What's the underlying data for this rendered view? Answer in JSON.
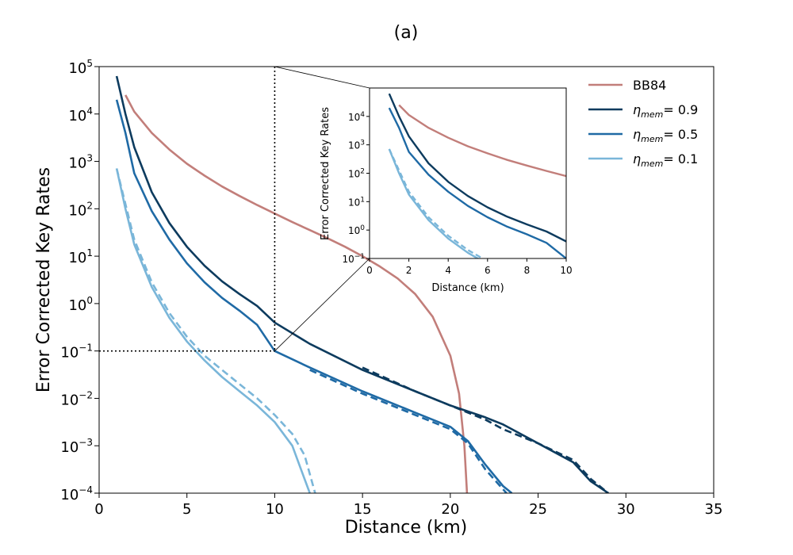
{
  "chart_data": {
    "type": "line",
    "title": "(a)",
    "xlabel": "Distance (km)",
    "ylabel": "Error Corrected Key Rates",
    "yscale": "log",
    "xlim": [
      0,
      35
    ],
    "ylim_exp": [
      -4,
      5
    ],
    "x_ticks": [
      0,
      5,
      10,
      15,
      20,
      25,
      30,
      35
    ],
    "y_tick_exps": [
      -4,
      -3,
      -2,
      -1,
      0,
      1,
      2,
      3,
      4,
      5
    ],
    "y_tick_base": "10",
    "legend_position": "upper-right",
    "legend": [
      {
        "series": "bb84",
        "label": "BB84"
      },
      {
        "series": "eta09",
        "symbol": "η",
        "sub": "mem",
        "text": "= 0.9"
      },
      {
        "series": "eta05",
        "symbol": "η",
        "sub": "mem",
        "text": "= 0.5"
      },
      {
        "series": "eta01",
        "symbol": "η",
        "sub": "mem",
        "text": "= 0.1"
      }
    ],
    "series": [
      {
        "id": "bb84",
        "color": "#c27e7a",
        "style": "solid",
        "points": [
          [
            1.5,
            4.4
          ],
          [
            2,
            4.05
          ],
          [
            3,
            3.6
          ],
          [
            4,
            3.25
          ],
          [
            5,
            2.95
          ],
          [
            6,
            2.7
          ],
          [
            7,
            2.47
          ],
          [
            8,
            2.27
          ],
          [
            9,
            2.08
          ],
          [
            10,
            1.9
          ],
          [
            11,
            1.72
          ],
          [
            12,
            1.55
          ],
          [
            13,
            1.38
          ],
          [
            14,
            1.2
          ],
          [
            15,
            1.0
          ],
          [
            16,
            0.78
          ],
          [
            17,
            0.53
          ],
          [
            18,
            0.2
          ],
          [
            19,
            -0.28
          ],
          [
            20,
            -1.1
          ],
          [
            20.5,
            -1.9
          ],
          [
            20.8,
            -3.0
          ],
          [
            20.95,
            -4.0
          ]
        ]
      },
      {
        "id": "eta09",
        "color": "#0d3b5e",
        "style": "solid",
        "points": [
          [
            1,
            4.8
          ],
          [
            1.5,
            4.0
          ],
          [
            2,
            3.3
          ],
          [
            3,
            2.35
          ],
          [
            4,
            1.7
          ],
          [
            5,
            1.2
          ],
          [
            6,
            0.8
          ],
          [
            7,
            0.47
          ],
          [
            8,
            0.2
          ],
          [
            9,
            -0.05
          ],
          [
            10,
            -0.4
          ],
          [
            12,
            -0.85
          ],
          [
            15,
            -1.4
          ],
          [
            18,
            -1.85
          ],
          [
            20,
            -2.15
          ],
          [
            22,
            -2.4
          ],
          [
            23,
            -2.55
          ],
          [
            25,
            -2.95
          ],
          [
            27,
            -3.35
          ],
          [
            28,
            -3.75
          ],
          [
            29,
            -4.0
          ]
        ]
      },
      {
        "id": "eta09d",
        "color": "#0d3b5e",
        "style": "dashed",
        "points": [
          [
            15,
            -1.35
          ],
          [
            18,
            -1.85
          ],
          [
            20,
            -2.15
          ],
          [
            22,
            -2.45
          ],
          [
            23,
            -2.65
          ],
          [
            25,
            -2.95
          ],
          [
            27,
            -3.3
          ],
          [
            28,
            -3.7
          ],
          [
            29,
            -4.0
          ]
        ]
      },
      {
        "id": "eta05",
        "color": "#1f6aa5",
        "style": "solid",
        "points": [
          [
            1,
            4.3
          ],
          [
            1.5,
            3.6
          ],
          [
            2,
            2.75
          ],
          [
            3,
            1.95
          ],
          [
            4,
            1.35
          ],
          [
            5,
            0.85
          ],
          [
            6,
            0.45
          ],
          [
            7,
            0.12
          ],
          [
            8,
            -0.15
          ],
          [
            9,
            -0.45
          ],
          [
            10,
            -1.0
          ],
          [
            12,
            -1.35
          ],
          [
            15,
            -1.85
          ],
          [
            18,
            -2.3
          ],
          [
            20,
            -2.6
          ],
          [
            21,
            -2.9
          ],
          [
            22,
            -3.4
          ],
          [
            23,
            -3.85
          ],
          [
            23.5,
            -4.0
          ]
        ]
      },
      {
        "id": "eta05d",
        "color": "#1f6aa5",
        "style": "dashed",
        "points": [
          [
            12,
            -1.4
          ],
          [
            15,
            -1.9
          ],
          [
            18,
            -2.35
          ],
          [
            20,
            -2.65
          ],
          [
            21,
            -2.95
          ],
          [
            22,
            -3.5
          ],
          [
            23.2,
            -4.0
          ]
        ]
      },
      {
        "id": "eta01",
        "color": "#7ab6d9",
        "style": "solid",
        "points": [
          [
            1,
            2.85
          ],
          [
            1.5,
            2.0
          ],
          [
            2,
            1.25
          ],
          [
            3,
            0.35
          ],
          [
            4,
            -0.3
          ],
          [
            5,
            -0.8
          ],
          [
            6,
            -1.2
          ],
          [
            7,
            -1.55
          ],
          [
            8,
            -1.85
          ],
          [
            9,
            -2.15
          ],
          [
            10,
            -2.5
          ],
          [
            11,
            -3.0
          ],
          [
            11.5,
            -3.5
          ],
          [
            12,
            -4.0
          ]
        ]
      },
      {
        "id": "eta01d",
        "color": "#7ab6d9",
        "style": "dashed",
        "points": [
          [
            1,
            2.85
          ],
          [
            1.5,
            2.1
          ],
          [
            2,
            1.35
          ],
          [
            3,
            0.45
          ],
          [
            4,
            -0.2
          ],
          [
            5,
            -0.7
          ],
          [
            6,
            -1.1
          ],
          [
            7,
            -1.4
          ],
          [
            8,
            -1.7
          ],
          [
            9,
            -2.0
          ],
          [
            10,
            -2.35
          ],
          [
            11,
            -2.75
          ],
          [
            11.7,
            -3.2
          ],
          [
            12.3,
            -4.0
          ]
        ]
      }
    ],
    "zoom_marker": {
      "x": 10,
      "y_exp": -1
    },
    "inset": {
      "xlabel": "Distance (km)",
      "ylabel": "Error Corrected Key Rates",
      "xlim": [
        0,
        10
      ],
      "ylim_exp": [
        -1,
        5
      ],
      "x_ticks": [
        0,
        2,
        4,
        6,
        8,
        10
      ],
      "y_tick_exps": [
        -1,
        0,
        1,
        2,
        3,
        4
      ],
      "series_ids": [
        "bb84",
        "eta09",
        "eta05",
        "eta01",
        "eta01d"
      ]
    }
  }
}
